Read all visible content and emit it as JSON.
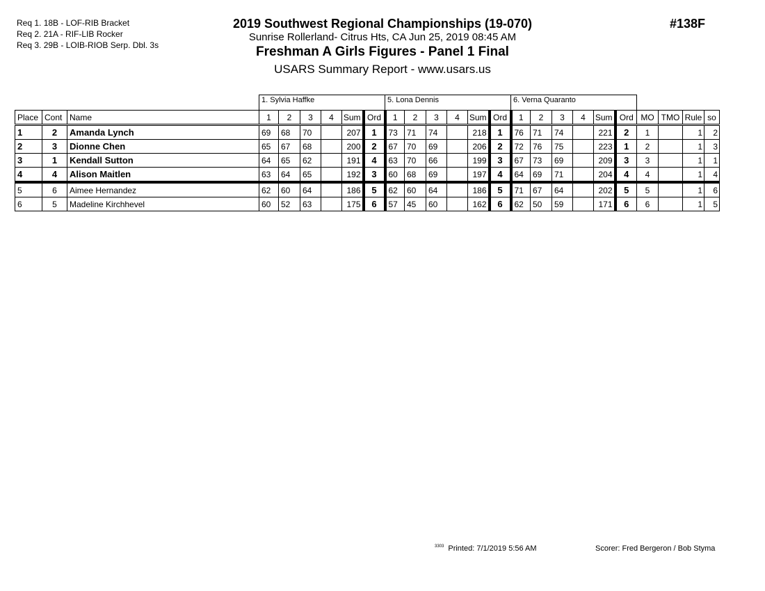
{
  "requirements": [
    "Req 1.  18B - LOF-RIB Bracket",
    "Req 2.  21A - RIF-LIB Rocker",
    "Req 3.  29B - LOIB-RIOB Serp. Dbl. 3s"
  ],
  "title": "2019 Southwest Regional Championships (19-070)",
  "venue": "Sunrise Rollerland- Citrus Hts, CA  Jun 25, 2019  08:45 AM",
  "event": "Freshman A Girls Figures - Panel 1 Final",
  "report": "USARS Summary Report - www.usars.us",
  "event_number": "#138F",
  "judges": [
    "1.  Sylvia Haffke",
    "5.  Lona Dennis",
    "6.  Verna Quaranto"
  ],
  "headers": {
    "place": "Place",
    "cont": "Cont",
    "name": "Name",
    "j1": "1",
    "j2": "2",
    "j3": "3",
    "j4": "4",
    "sum": "Sum",
    "ord": "Ord",
    "mo": "MO",
    "tmo": "TMO",
    "rule": "Rule",
    "so": "so"
  },
  "rows": [
    {
      "place": "1",
      "cont": "2",
      "name": "Amanda Lynch",
      "bold": true,
      "judges": [
        {
          "s": [
            "69",
            "68",
            "70",
            ""
          ],
          "sum": "207",
          "ord": "1"
        },
        {
          "s": [
            "73",
            "71",
            "74",
            ""
          ],
          "sum": "218",
          "ord": "1"
        },
        {
          "s": [
            "76",
            "71",
            "74",
            ""
          ],
          "sum": "221",
          "ord": "2"
        }
      ],
      "mo": "1",
      "tmo": "",
      "rule": "1",
      "so": "2"
    },
    {
      "place": "2",
      "cont": "3",
      "name": "Dionne Chen",
      "bold": true,
      "judges": [
        {
          "s": [
            "65",
            "67",
            "68",
            ""
          ],
          "sum": "200",
          "ord": "2"
        },
        {
          "s": [
            "67",
            "70",
            "69",
            ""
          ],
          "sum": "206",
          "ord": "2"
        },
        {
          "s": [
            "72",
            "76",
            "75",
            ""
          ],
          "sum": "223",
          "ord": "1"
        }
      ],
      "mo": "2",
      "tmo": "",
      "rule": "1",
      "so": "3"
    },
    {
      "place": "3",
      "cont": "1",
      "name": "Kendall Sutton",
      "bold": true,
      "judges": [
        {
          "s": [
            "64",
            "65",
            "62",
            ""
          ],
          "sum": "191",
          "ord": "4"
        },
        {
          "s": [
            "63",
            "70",
            "66",
            ""
          ],
          "sum": "199",
          "ord": "3"
        },
        {
          "s": [
            "67",
            "73",
            "69",
            ""
          ],
          "sum": "209",
          "ord": "3"
        }
      ],
      "mo": "3",
      "tmo": "",
      "rule": "1",
      "so": "1"
    },
    {
      "place": "4",
      "cont": "4",
      "name": "Alison Maitlen",
      "bold": true,
      "judges": [
        {
          "s": [
            "63",
            "64",
            "65",
            ""
          ],
          "sum": "192",
          "ord": "3"
        },
        {
          "s": [
            "60",
            "68",
            "69",
            ""
          ],
          "sum": "197",
          "ord": "4"
        },
        {
          "s": [
            "64",
            "69",
            "71",
            ""
          ],
          "sum": "204",
          "ord": "4"
        }
      ],
      "mo": "4",
      "tmo": "",
      "rule": "1",
      "so": "4"
    },
    {
      "place": "5",
      "cont": "6",
      "name": "Aimee Hernandez",
      "bold": false,
      "judges": [
        {
          "s": [
            "62",
            "60",
            "64",
            ""
          ],
          "sum": "186",
          "ord": "5"
        },
        {
          "s": [
            "62",
            "60",
            "64",
            ""
          ],
          "sum": "186",
          "ord": "5"
        },
        {
          "s": [
            "71",
            "67",
            "64",
            ""
          ],
          "sum": "202",
          "ord": "5"
        }
      ],
      "mo": "5",
      "tmo": "",
      "rule": "1",
      "so": "6"
    },
    {
      "place": "6",
      "cont": "5",
      "name": "Madeline Kirchhevel",
      "bold": false,
      "judges": [
        {
          "s": [
            "60",
            "52",
            "63",
            ""
          ],
          "sum": "175",
          "ord": "6"
        },
        {
          "s": [
            "57",
            "45",
            "60",
            ""
          ],
          "sum": "162",
          "ord": "6"
        },
        {
          "s": [
            "62",
            "50",
            "59",
            ""
          ],
          "sum": "171",
          "ord": "6"
        }
      ],
      "mo": "6",
      "tmo": "",
      "rule": "1",
      "so": "5"
    }
  ],
  "footer": {
    "code": "3303",
    "printed": "Printed:  7/1/2019  5:56 AM",
    "scorer": "Scorer:   Fred Bergeron / Bob Styma"
  }
}
